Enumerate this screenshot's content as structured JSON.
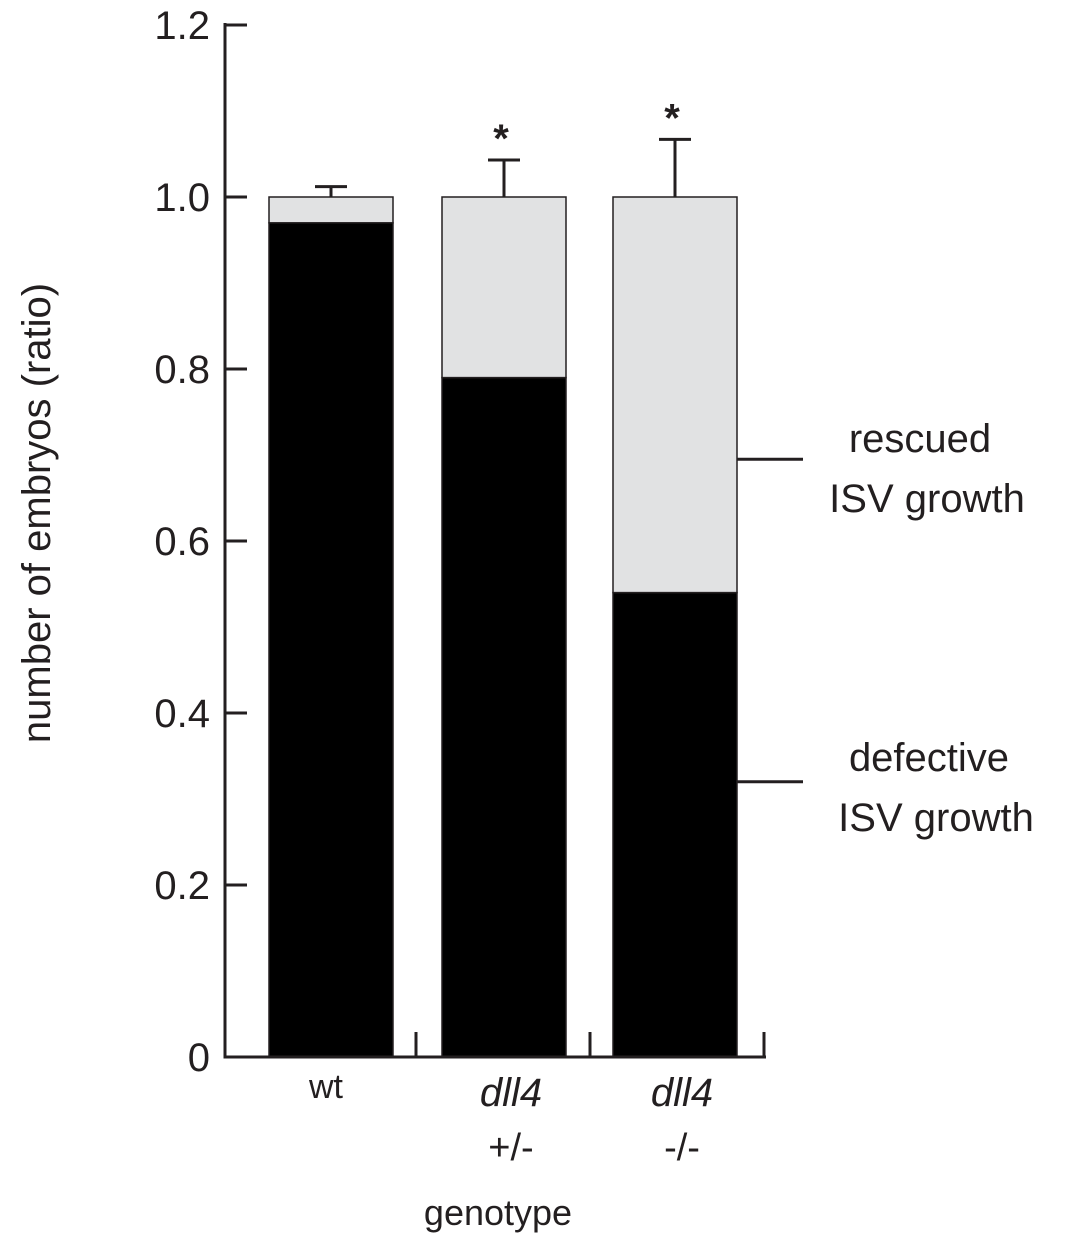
{
  "chart_data": {
    "type": "bar",
    "stacked": true,
    "categories": [
      {
        "line1": "wt",
        "line2": ""
      },
      {
        "line1": "dll4",
        "line2": "+/-"
      },
      {
        "line1": "dll4",
        "line2": "-/-"
      }
    ],
    "series": [
      {
        "name": "defective ISV growth",
        "label_lines": [
          "defective",
          "ISV growth"
        ],
        "color": "#000000",
        "values": [
          0.97,
          0.79,
          0.54
        ]
      },
      {
        "name": "rescued ISV growth",
        "label_lines": [
          "rescued",
          "ISV growth"
        ],
        "color": "#e1e2e3",
        "values": [
          0.03,
          0.21,
          0.46
        ]
      }
    ],
    "error_bars": [
      0.012,
      0.043,
      0.067
    ],
    "significance": [
      "",
      "*",
      "*"
    ],
    "xlabel": "genotype",
    "ylabel": "number of embryos (ratio)",
    "ylim": [
      0,
      1.2
    ],
    "yticks": [
      0,
      0.2,
      0.4,
      0.6,
      0.8,
      1.0,
      1.2
    ],
    "ytick_labels": [
      "0",
      "0.2",
      "0.4",
      "0.6",
      "0.8",
      "1.0",
      "1.2"
    ],
    "legend_placement": "right",
    "grid": false
  }
}
